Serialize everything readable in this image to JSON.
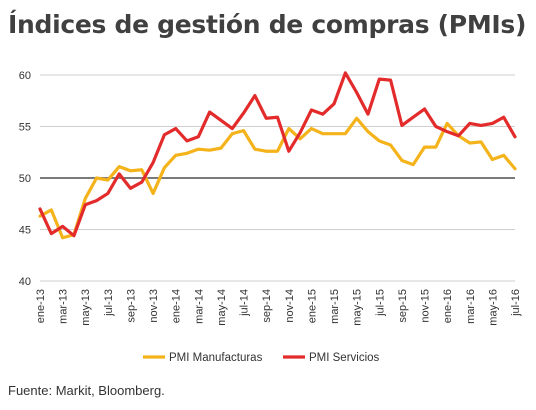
{
  "title": "Índices de gestión de compras (PMIs)",
  "source": "Fuente: Markit, Bloomberg.",
  "chart_data": {
    "type": "line",
    "title": "Índices de gestión de compras (PMIs)",
    "xlabel": "",
    "ylabel": "",
    "ylim": [
      40,
      60
    ],
    "yticks": [
      40,
      45,
      50,
      55,
      60
    ],
    "reference_line": 50,
    "grid": "horizontal",
    "legend_position": "bottom",
    "x_tick_labels": [
      "ene-13",
      "mar-13",
      "may-13",
      "jul-13",
      "sep-13",
      "nov-13",
      "ene-14",
      "mar-14",
      "may-14",
      "jul-14",
      "sep-14",
      "nov-14",
      "ene-15",
      "mar-15",
      "may-15",
      "jul-15",
      "sep-15",
      "nov-15",
      "ene-16",
      "mar-16",
      "may-16",
      "jul-16"
    ],
    "categories": [
      "ene-13",
      "feb-13",
      "mar-13",
      "abr-13",
      "may-13",
      "jun-13",
      "jul-13",
      "ago-13",
      "sep-13",
      "oct-13",
      "nov-13",
      "dic-13",
      "ene-14",
      "feb-14",
      "mar-14",
      "abr-14",
      "may-14",
      "jun-14",
      "jul-14",
      "ago-14",
      "sep-14",
      "oct-14",
      "nov-14",
      "dic-14",
      "ene-15",
      "feb-15",
      "mar-15",
      "abr-15",
      "may-15",
      "jun-15",
      "jul-15",
      "ago-15",
      "sep-15",
      "oct-15",
      "nov-15",
      "dic-15",
      "ene-16",
      "feb-16",
      "mar-16",
      "abr-16",
      "may-16",
      "jun-16",
      "jul-16"
    ],
    "series": [
      {
        "name": "PMI Manufacturas",
        "color": "#f5b31b",
        "values": [
          46.3,
          46.9,
          44.2,
          44.5,
          48.0,
          50.0,
          49.8,
          51.1,
          50.7,
          50.8,
          48.5,
          51.0,
          52.2,
          52.4,
          52.8,
          52.7,
          52.9,
          54.3,
          54.6,
          52.8,
          52.6,
          52.6,
          54.8,
          53.8,
          54.8,
          54.3,
          54.3,
          54.3,
          55.8,
          54.5,
          53.6,
          53.2,
          51.7,
          51.3,
          53.0,
          53.0,
          55.3,
          54.1,
          53.4,
          53.5,
          51.8,
          52.2,
          50.9
        ]
      },
      {
        "name": "PMI Servicios",
        "color": "#e32b2b",
        "values": [
          47.0,
          44.6,
          45.3,
          44.4,
          47.4,
          47.8,
          48.5,
          50.4,
          49.0,
          49.6,
          51.5,
          54.2,
          54.8,
          53.6,
          54.0,
          56.4,
          55.6,
          54.8,
          56.3,
          58.0,
          55.8,
          55.9,
          52.6,
          54.4,
          56.6,
          56.2,
          57.2,
          60.2,
          58.3,
          56.2,
          59.6,
          59.5,
          55.1,
          55.9,
          56.7,
          55.0,
          54.5,
          54.1,
          55.3,
          55.1,
          55.3,
          55.9,
          54.0
        ]
      }
    ]
  }
}
